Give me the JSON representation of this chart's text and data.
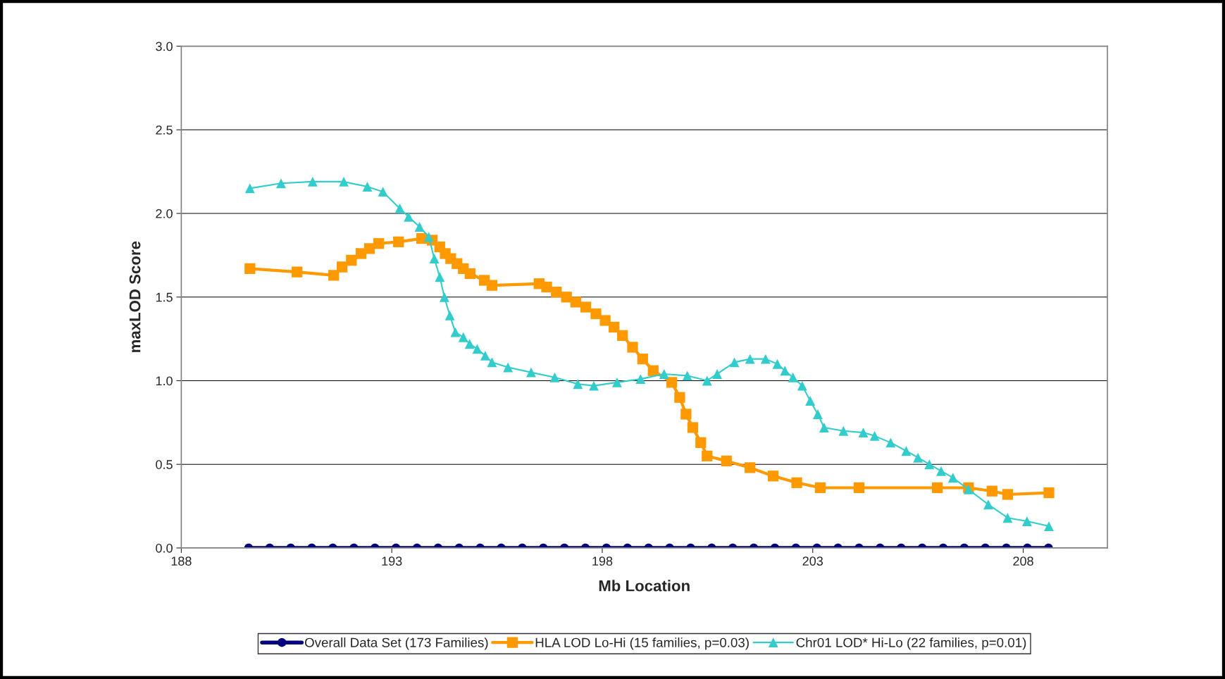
{
  "chart_data": {
    "type": "line",
    "xlabel": "Mb Location",
    "ylabel": "maxLOD Score",
    "xlim": [
      188,
      210
    ],
    "xticks": [
      188,
      193,
      198,
      203,
      208
    ],
    "ylim": [
      0,
      3
    ],
    "yticks": [
      {
        "value": 0,
        "label": "0.0"
      },
      {
        "value": 0.5,
        "label": "0.5"
      },
      {
        "value": 1,
        "label": "1.0"
      },
      {
        "value": 1.5,
        "label": "1.5"
      },
      {
        "value": 2,
        "label": "2.0"
      },
      {
        "value": 2.5,
        "label": "2.5"
      },
      {
        "value": 3,
        "label": "3.0"
      }
    ],
    "grid": "y",
    "legend": "bottom",
    "line_style": "solid",
    "series": [
      {
        "name": "Overall Data Set (173 Families)",
        "color": "#000080",
        "marker": "circle",
        "x": [
          189.6,
          190.1,
          190.6,
          191.1,
          191.6,
          192.1,
          192.6,
          193.1,
          193.6,
          194.1,
          194.6,
          195.1,
          195.6,
          196.1,
          196.6,
          197.1,
          197.6,
          198.1,
          198.6,
          199.1,
          199.6,
          200.1,
          200.6,
          201.1,
          201.6,
          202.1,
          202.6,
          203.1,
          203.6,
          204.1,
          204.6,
          205.1,
          205.6,
          206.1,
          206.6,
          207.1,
          207.6,
          208.1,
          208.6
        ],
        "values": [
          0,
          0,
          0,
          0,
          0,
          0,
          0,
          0,
          0,
          0,
          0,
          0,
          0,
          0,
          0,
          0,
          0,
          0,
          0,
          0,
          0,
          0,
          0,
          0,
          0,
          0,
          0,
          0,
          0,
          0,
          0,
          0,
          0,
          0,
          0,
          0,
          0,
          0,
          0
        ]
      },
      {
        "name": "HLA LOD Lo-Hi (15 families, p=0.03)",
        "color": "#ff9900",
        "marker": "square",
        "x": [
          189.63,
          190.75,
          191.62,
          191.82,
          192.04,
          192.27,
          192.47,
          192.69,
          193.16,
          193.71,
          193.96,
          194.14,
          194.27,
          194.4,
          194.55,
          194.7,
          194.86,
          195.2,
          195.38,
          196.5,
          196.68,
          196.91,
          197.15,
          197.37,
          197.61,
          197.85,
          198.07,
          198.28,
          198.48,
          198.72,
          198.96,
          199.21,
          199.65,
          199.84,
          199.99,
          200.15,
          200.34,
          200.49,
          200.95,
          201.51,
          202.06,
          202.62,
          203.18,
          204.1,
          205.96,
          206.7,
          207.26,
          207.63,
          208.61
        ],
        "values": [
          1.67,
          1.65,
          1.63,
          1.68,
          1.72,
          1.76,
          1.79,
          1.82,
          1.83,
          1.85,
          1.84,
          1.8,
          1.76,
          1.73,
          1.7,
          1.67,
          1.64,
          1.6,
          1.57,
          1.58,
          1.56,
          1.53,
          1.5,
          1.47,
          1.44,
          1.4,
          1.36,
          1.32,
          1.27,
          1.2,
          1.13,
          1.06,
          0.99,
          0.9,
          0.8,
          0.72,
          0.63,
          0.55,
          0.52,
          0.48,
          0.43,
          0.39,
          0.36,
          0.36,
          0.36,
          0.36,
          0.34,
          0.32,
          0.33
        ]
      },
      {
        "name": "Chr01 LOD* Hi-Lo (22 families, p=0.01)",
        "color": "#33cccc",
        "marker": "triangle",
        "x": [
          189.63,
          190.37,
          191.12,
          191.86,
          192.42,
          192.79,
          193.19,
          193.4,
          193.66,
          193.88,
          194.01,
          194.14,
          194.25,
          194.38,
          194.51,
          194.7,
          194.85,
          195.03,
          195.22,
          195.38,
          195.76,
          196.31,
          196.87,
          197.42,
          197.8,
          198.35,
          198.91,
          199.47,
          200.02,
          200.49,
          200.73,
          201.14,
          201.51,
          201.88,
          202.16,
          202.34,
          202.53,
          202.75,
          202.94,
          203.12,
          203.27,
          203.73,
          204.2,
          204.47,
          204.85,
          205.22,
          205.5,
          205.77,
          206.05,
          206.33,
          206.7,
          207.17,
          207.63,
          208.09,
          208.61
        ],
        "values": [
          2.15,
          2.18,
          2.19,
          2.19,
          2.16,
          2.13,
          2.03,
          1.98,
          1.92,
          1.86,
          1.73,
          1.62,
          1.5,
          1.39,
          1.29,
          1.26,
          1.22,
          1.19,
          1.15,
          1.11,
          1.08,
          1.05,
          1.02,
          0.98,
          0.97,
          0.99,
          1.01,
          1.04,
          1.03,
          1.0,
          1.04,
          1.11,
          1.13,
          1.13,
          1.1,
          1.06,
          1.02,
          0.97,
          0.88,
          0.8,
          0.72,
          0.7,
          0.69,
          0.67,
          0.63,
          0.58,
          0.54,
          0.5,
          0.46,
          0.42,
          0.35,
          0.26,
          0.18,
          0.16,
          0.13
        ]
      }
    ]
  }
}
